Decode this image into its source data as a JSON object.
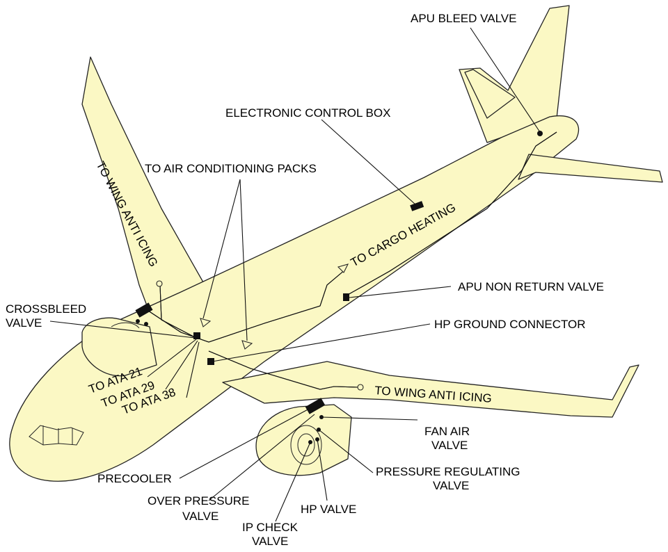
{
  "diagram": {
    "labels": {
      "apu_bleed_valve": "APU BLEED VALVE",
      "electronic_control_box": "ELECTRONIC CONTROL BOX",
      "to_air_conditioning_packs": "TO AIR CONDITIONING PACKS",
      "to_wing_anti_icing_left": "TO WING ANTI ICING",
      "to_cargo_heating": "TO CARGO HEATING",
      "apu_non_return_valve": "APU NON RETURN VALVE",
      "crossbleed_valve_line1": "CROSSBLEED",
      "crossbleed_valve_line2": "VALVE",
      "hp_ground_connector": "HP GROUND CONNECTOR",
      "to_ata_21": "TO ATA 21",
      "to_ata_29": "TO ATA 29",
      "to_ata_38": "TO ATA 38",
      "to_wing_anti_icing_right": "TO WING ANTI ICING",
      "fan_air_valve_line1": "FAN AIR",
      "fan_air_valve_line2": "VALVE",
      "pressure_regulating_valve_line1": "PRESSURE REGULATING",
      "pressure_regulating_valve_line2": "VALVE",
      "precooler": "PRECOOLER",
      "over_pressure_valve_line1": "OVER PRESSURE",
      "over_pressure_valve_line2": "VALVE",
      "hp_valve": "HP VALVE",
      "ip_check_valve_line1": "IP CHECK",
      "ip_check_valve_line2": "VALVE"
    },
    "colors": {
      "airframe_fill": "#fbf8c4",
      "outline": "#222222"
    }
  }
}
